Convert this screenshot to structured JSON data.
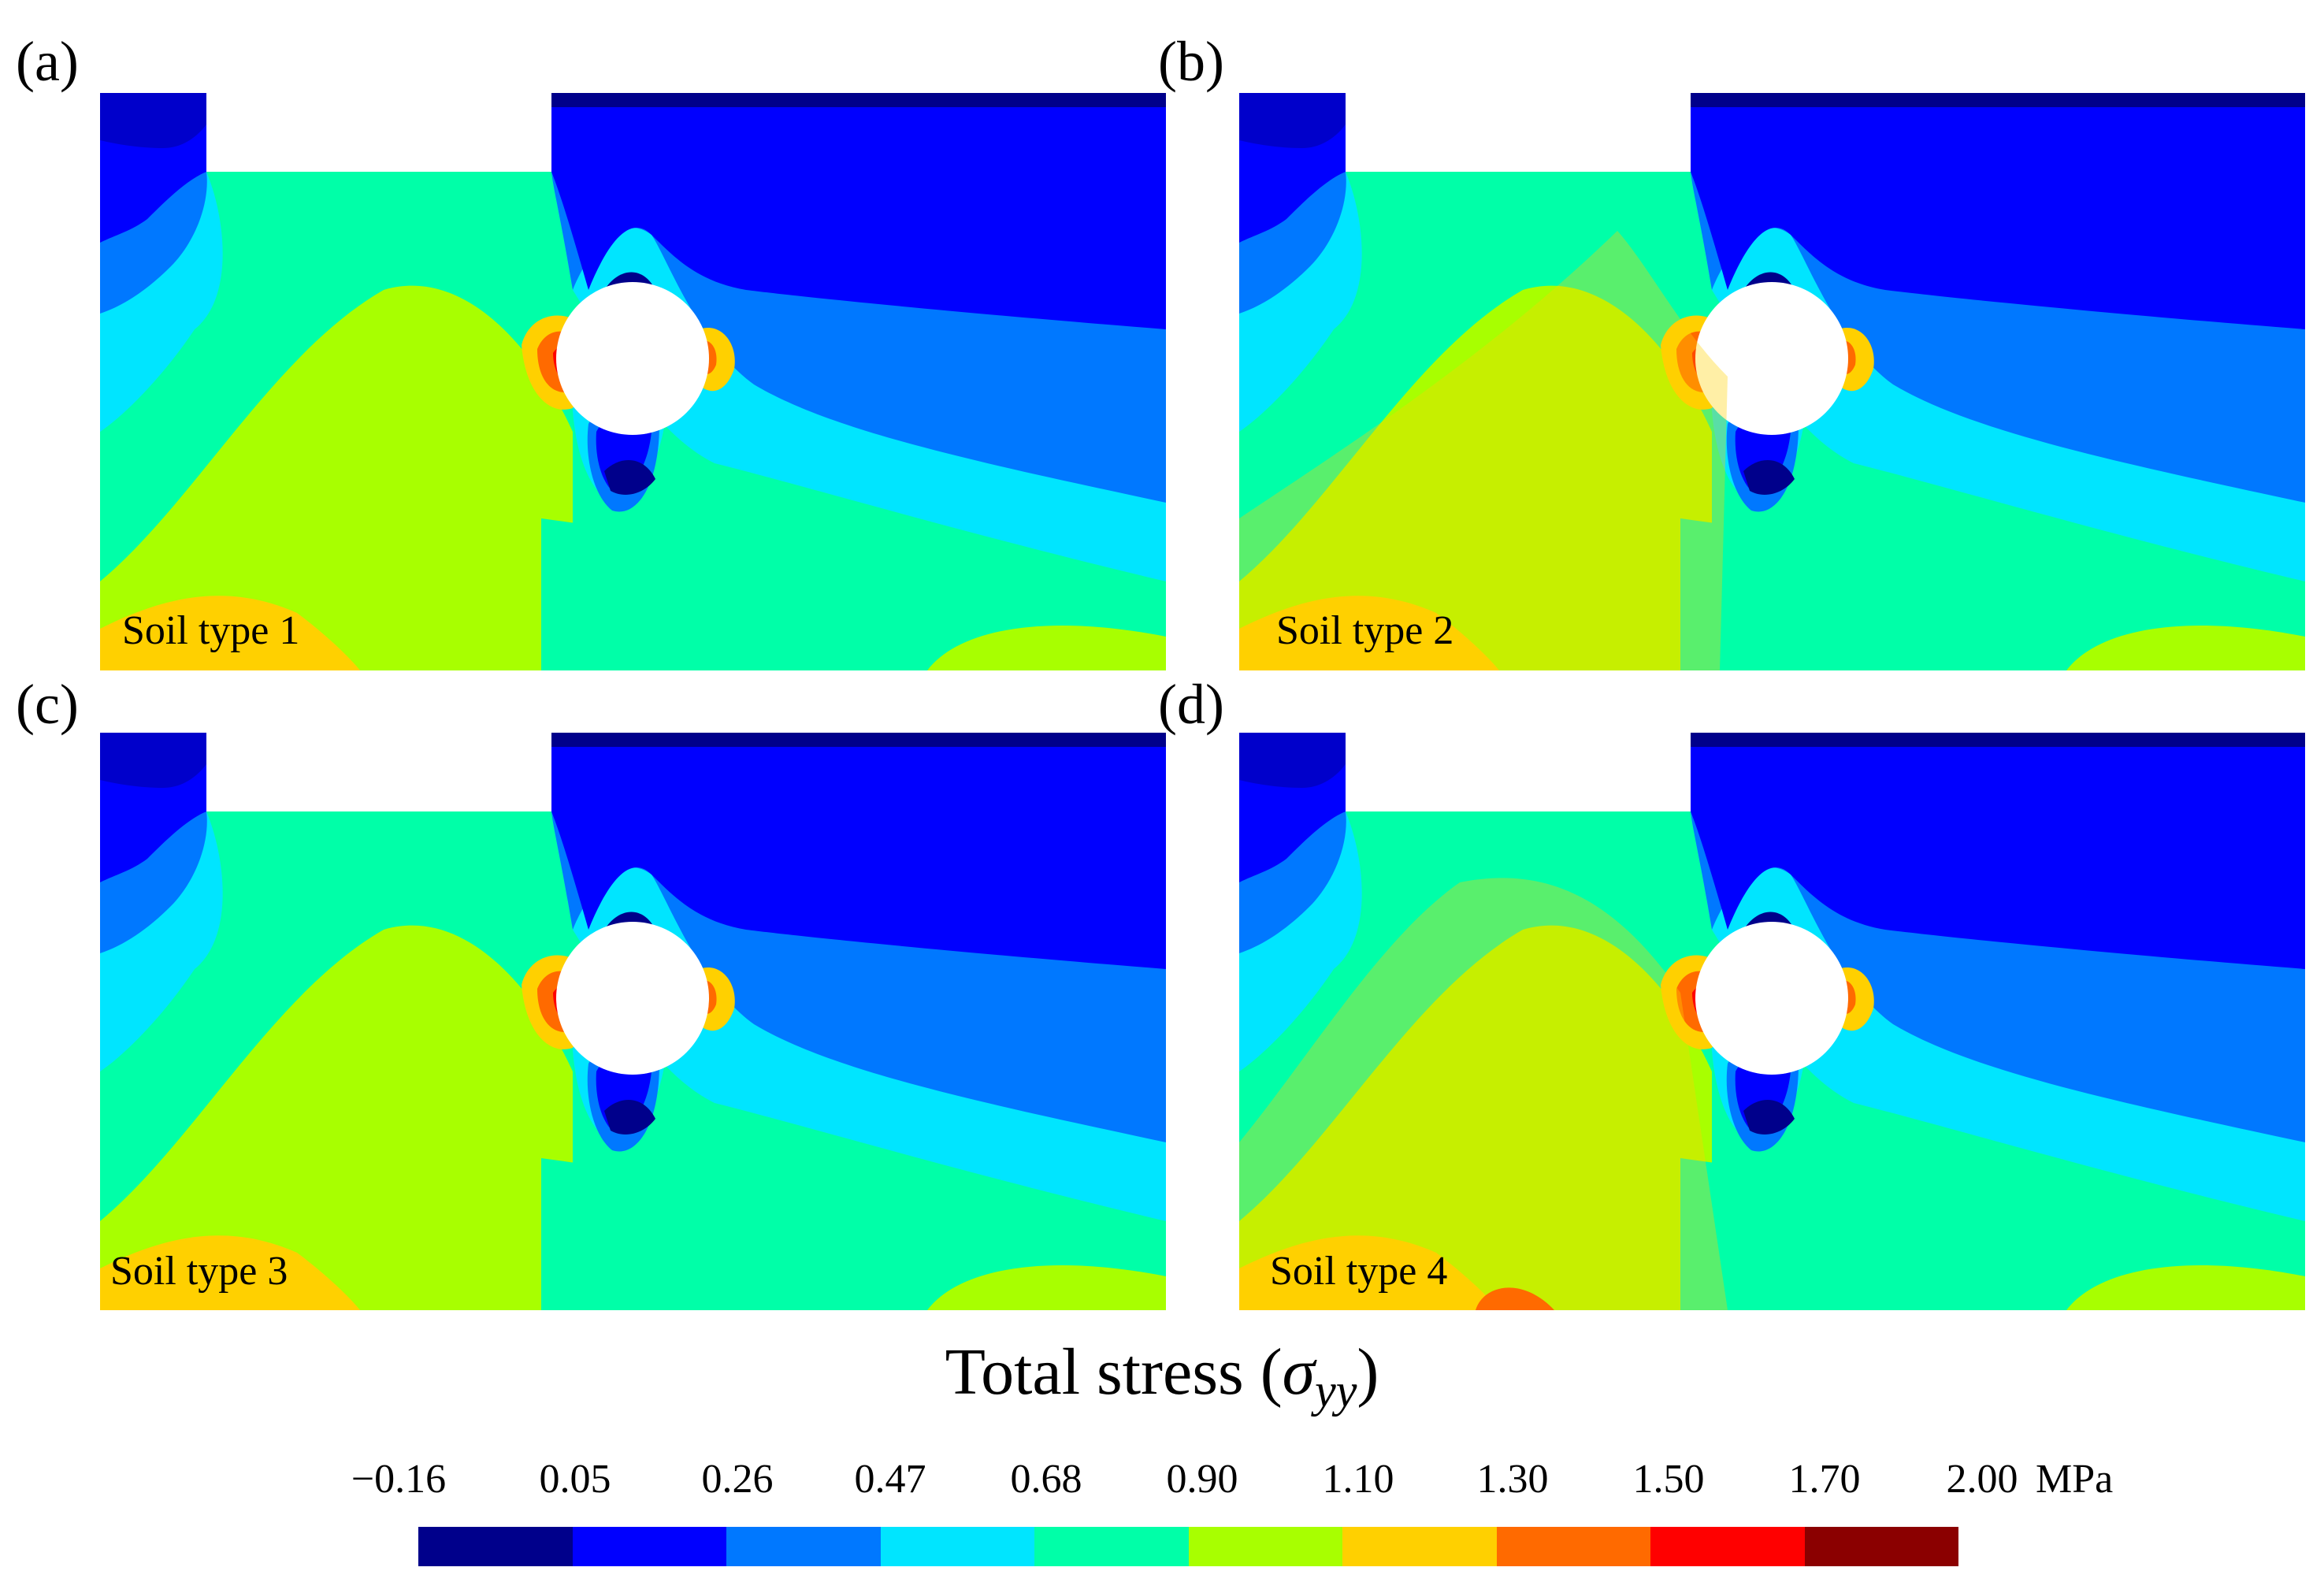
{
  "panels": [
    {
      "label": "(a)",
      "soil_label": "Soil type 1"
    },
    {
      "label": "(b)",
      "soil_label": "Soil type 2"
    },
    {
      "label": "(c)",
      "soil_label": "Soil type 3"
    },
    {
      "label": "(d)",
      "soil_label": "Soil type 4"
    }
  ],
  "title": {
    "prefix": "Total stress (",
    "symbol": "σ",
    "subscript": "yy",
    "suffix": ")"
  },
  "colorbar": {
    "ticks": [
      "−0.16",
      "0.05",
      "0.26",
      "0.47",
      "0.68",
      "0.90",
      "1.10",
      "1.30",
      "1.50",
      "1.70",
      "2.00"
    ],
    "unit": "MPa",
    "colors": [
      "#00008b",
      "#0000ff",
      "#0078ff",
      "#00e5ff",
      "#00ffa8",
      "#a8ff00",
      "#ffd000",
      "#ff6a00",
      "#ff0000",
      "#8b0000"
    ]
  }
}
